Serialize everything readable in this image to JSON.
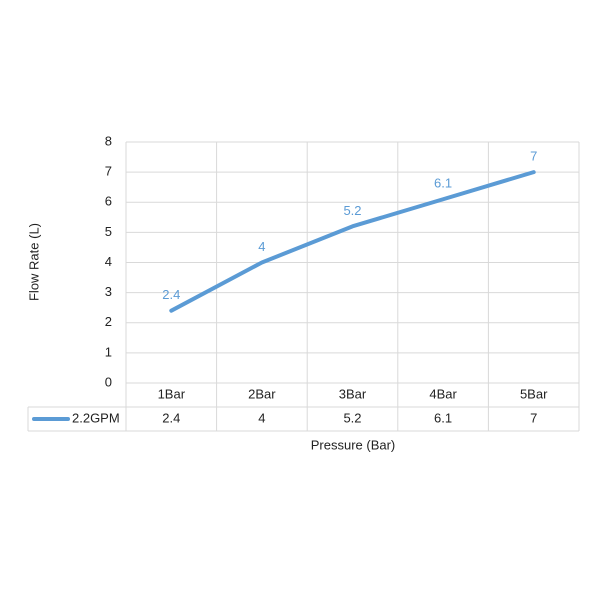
{
  "chart_data": {
    "type": "line",
    "x_label": "Pressure (Bar)",
    "y_label": "Flow Rate (L)",
    "categories": [
      "1Bar",
      "2Bar",
      "3Bar",
      "4Bar",
      "5Bar"
    ],
    "series": [
      {
        "name": "2.2GPM",
        "color": "#5b9bd5",
        "values": [
          2.4,
          4,
          5.2,
          6.1,
          7
        ]
      }
    ],
    "ylim": [
      0,
      8
    ],
    "yticks": [
      0,
      1,
      2,
      3,
      4,
      5,
      6,
      7,
      8
    ],
    "grid": true,
    "data_labels": true,
    "data_table": true
  }
}
